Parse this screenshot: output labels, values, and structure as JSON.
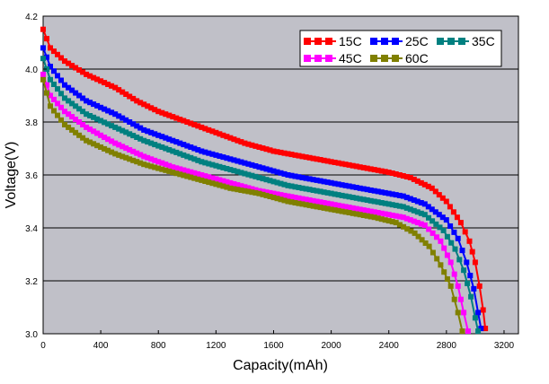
{
  "chart_data": {
    "type": "line",
    "xlabel": "Capacity(mAh)",
    "ylabel": "Voltage(V)",
    "xlim": [
      0,
      3300
    ],
    "ylim": [
      3.0,
      4.2
    ],
    "xticks": [
      "0",
      "400",
      "800",
      "1200",
      "1600",
      "2000",
      "2400",
      "2800",
      "3200"
    ],
    "yticks": [
      "3.0",
      "3.2",
      "3.4",
      "3.6",
      "3.8",
      "4.0",
      "4.2"
    ],
    "grid": "horizontal",
    "legend_position": "top-right",
    "plot_background": "#c0c0c8",
    "series": [
      {
        "name": "15C",
        "color": "#ff0000",
        "x": [
          0,
          50,
          150,
          300,
          500,
          650,
          800,
          1000,
          1200,
          1400,
          1600,
          1800,
          2000,
          2200,
          2400,
          2550,
          2700,
          2800,
          2900,
          2960,
          3000,
          3030,
          3055,
          3070
        ],
        "y": [
          4.15,
          4.08,
          4.03,
          3.98,
          3.93,
          3.88,
          3.84,
          3.8,
          3.76,
          3.72,
          3.69,
          3.67,
          3.65,
          3.63,
          3.61,
          3.59,
          3.55,
          3.5,
          3.42,
          3.35,
          3.27,
          3.18,
          3.09,
          3.02
        ]
      },
      {
        "name": "25C",
        "color": "#0000ff",
        "x": [
          0,
          50,
          150,
          300,
          500,
          700,
          900,
          1100,
          1300,
          1500,
          1700,
          1900,
          2100,
          2300,
          2500,
          2650,
          2800,
          2880,
          2940,
          2990,
          3020,
          3040
        ],
        "y": [
          4.08,
          4.01,
          3.94,
          3.88,
          3.83,
          3.77,
          3.73,
          3.69,
          3.66,
          3.63,
          3.6,
          3.58,
          3.56,
          3.54,
          3.52,
          3.49,
          3.43,
          3.36,
          3.27,
          3.17,
          3.08,
          3.02
        ]
      },
      {
        "name": "35C",
        "color": "#008080",
        "x": [
          0,
          50,
          150,
          300,
          500,
          700,
          900,
          1100,
          1300,
          1500,
          1700,
          1900,
          2100,
          2300,
          2500,
          2650,
          2780,
          2860,
          2920,
          2970,
          3000,
          3020
        ],
        "y": [
          4.04,
          3.96,
          3.89,
          3.83,
          3.78,
          3.73,
          3.69,
          3.65,
          3.62,
          3.59,
          3.56,
          3.54,
          3.52,
          3.5,
          3.48,
          3.45,
          3.39,
          3.32,
          3.24,
          3.14,
          3.06,
          3.01
        ]
      },
      {
        "name": "45C",
        "color": "#ff00ff",
        "x": [
          0,
          50,
          150,
          300,
          500,
          700,
          900,
          1100,
          1300,
          1500,
          1700,
          1900,
          2100,
          2300,
          2500,
          2650,
          2760,
          2830,
          2880,
          2920,
          2950
        ],
        "y": [
          3.98,
          3.9,
          3.84,
          3.78,
          3.72,
          3.67,
          3.63,
          3.6,
          3.57,
          3.54,
          3.52,
          3.5,
          3.48,
          3.46,
          3.44,
          3.41,
          3.35,
          3.27,
          3.18,
          3.08,
          3.01
        ]
      },
      {
        "name": "60C",
        "color": "#808000",
        "x": [
          0,
          50,
          150,
          300,
          500,
          700,
          900,
          1100,
          1300,
          1500,
          1700,
          1900,
          2100,
          2300,
          2450,
          2580,
          2680,
          2760,
          2830,
          2880,
          2910
        ],
        "y": [
          3.96,
          3.86,
          3.79,
          3.73,
          3.68,
          3.64,
          3.61,
          3.58,
          3.55,
          3.53,
          3.5,
          3.48,
          3.46,
          3.44,
          3.42,
          3.38,
          3.33,
          3.26,
          3.18,
          3.08,
          3.01
        ]
      }
    ]
  }
}
